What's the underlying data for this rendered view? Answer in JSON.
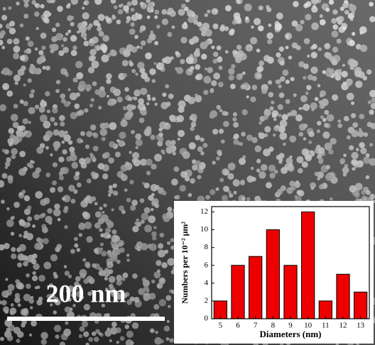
{
  "image": {
    "scale_bar_label": "200 nm"
  },
  "chart_data": {
    "type": "bar",
    "xlabel": "Diameters (nm)",
    "ylabel": "Numbers per 10⁻² μm²",
    "categories": [
      "5",
      "6",
      "7",
      "8",
      "9",
      "10",
      "11",
      "12",
      "13"
    ],
    "values": [
      2,
      6,
      7,
      10,
      6,
      12,
      2,
      5,
      3
    ],
    "color": "#ee0000",
    "ylim": [
      0,
      12.6
    ],
    "yticks": [
      0,
      2,
      4,
      6,
      8,
      10,
      12
    ]
  }
}
